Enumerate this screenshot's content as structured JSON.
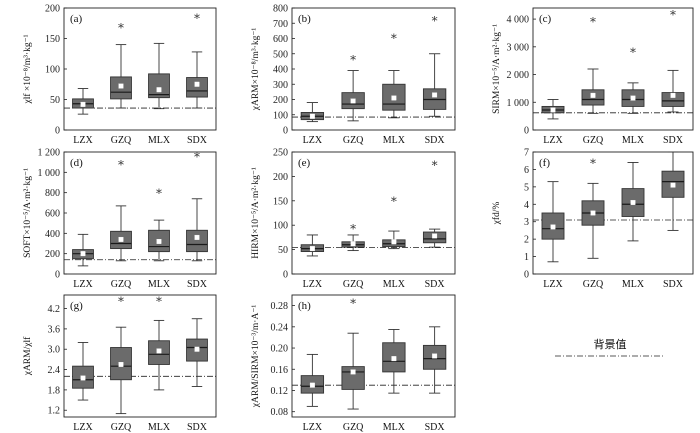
{
  "chart_data": [
    {
      "type": "boxplot",
      "panel_label": "(a)",
      "ylabel": "χlf ×10⁻⁸/m³·kg⁻¹",
      "ylim": [
        0,
        200
      ],
      "yticks": [
        "0",
        "50",
        "100",
        "150",
        "200"
      ],
      "ytick_values": [
        0,
        50,
        100,
        150,
        200
      ],
      "categories": [
        "LZX",
        "GZQ",
        "MLX",
        "SDX"
      ],
      "boxes": [
        {
          "whislo": 26,
          "q1": 36,
          "med": 43,
          "q3": 51,
          "whishi": 68,
          "mean": 42,
          "outliers": []
        },
        {
          "whislo": 36,
          "q1": 51,
          "med": 62,
          "q3": 87,
          "whishi": 140,
          "mean": 72,
          "outliers": [
            172
          ]
        },
        {
          "whislo": 35,
          "q1": 53,
          "med": 58,
          "q3": 92,
          "whishi": 142,
          "mean": 66,
          "outliers": []
        },
        {
          "whislo": 36,
          "q1": 54,
          "med": 64,
          "q3": 86,
          "whishi": 128,
          "mean": 75,
          "outliers": [
            188
          ]
        }
      ],
      "background": 36
    },
    {
      "type": "boxplot",
      "panel_label": "(b)",
      "ylabel": "χARM×10⁻⁸/m³·kg⁻¹",
      "ylim": [
        0,
        800
      ],
      "yticks": [
        "0",
        "100",
        "200",
        "300",
        "400",
        "500",
        "600",
        "700",
        "800"
      ],
      "ytick_values": [
        0,
        100,
        200,
        300,
        400,
        500,
        600,
        700,
        800
      ],
      "categories": [
        "LZX",
        "GZQ",
        "MLX",
        "SDX"
      ],
      "boxes": [
        {
          "whislo": 55,
          "q1": 68,
          "med": 90,
          "q3": 115,
          "whishi": 180,
          "mean": 90,
          "outliers": []
        },
        {
          "whislo": 60,
          "q1": 140,
          "med": 170,
          "q3": 245,
          "whishi": 390,
          "mean": 190,
          "outliers": [
            480
          ]
        },
        {
          "whislo": 80,
          "q1": 130,
          "med": 170,
          "q3": 300,
          "whishi": 390,
          "mean": 210,
          "outliers": [
            620
          ]
        },
        {
          "whislo": 90,
          "q1": 135,
          "med": 200,
          "q3": 270,
          "whishi": 500,
          "mean": 230,
          "outliers": [
            735
          ]
        }
      ],
      "background": 85
    },
    {
      "type": "boxplot",
      "panel_label": "(c)",
      "ylabel": "SIRM×10⁻⁵/A·m²·kg⁻¹",
      "ylim": [
        0,
        4400
      ],
      "yticks": [
        "0",
        "1 000",
        "2 000",
        "3 000",
        "4 000"
      ],
      "ytick_values": [
        0,
        1000,
        2000,
        3000,
        4000
      ],
      "categories": [
        "LZX",
        "GZQ",
        "MLX",
        "SDX"
      ],
      "boxes": [
        {
          "whislo": 400,
          "q1": 620,
          "med": 720,
          "q3": 850,
          "whishi": 1100,
          "mean": 720,
          "outliers": []
        },
        {
          "whislo": 600,
          "q1": 900,
          "med": 1100,
          "q3": 1450,
          "whishi": 2200,
          "mean": 1250,
          "outliers": [
            4000
          ]
        },
        {
          "whislo": 600,
          "q1": 850,
          "med": 1100,
          "q3": 1450,
          "whishi": 1700,
          "mean": 1150,
          "outliers": [
            2900
          ]
        },
        {
          "whislo": 650,
          "q1": 850,
          "med": 1050,
          "q3": 1350,
          "whishi": 2150,
          "mean": 1250,
          "outliers": [
            4250
          ]
        }
      ],
      "background": 620
    },
    {
      "type": "boxplot",
      "panel_label": "(d)",
      "ylabel": "SOFT×10⁻⁵/A·m²·kg⁻¹",
      "ylim": [
        0,
        1200
      ],
      "yticks": [
        "0",
        "200",
        "400",
        "600",
        "800",
        "1 000",
        "1 200"
      ],
      "ytick_values": [
        0,
        200,
        400,
        600,
        800,
        1000,
        1200
      ],
      "categories": [
        "LZX",
        "GZQ",
        "MLX",
        "SDX"
      ],
      "boxes": [
        {
          "whislo": 80,
          "q1": 150,
          "med": 200,
          "q3": 240,
          "whishi": 390,
          "mean": 200,
          "outliers": []
        },
        {
          "whislo": 130,
          "q1": 250,
          "med": 300,
          "q3": 420,
          "whishi": 670,
          "mean": 340,
          "outliers": [
            1100
          ]
        },
        {
          "whislo": 130,
          "q1": 220,
          "med": 270,
          "q3": 430,
          "whishi": 530,
          "mean": 320,
          "outliers": [
            820
          ]
        },
        {
          "whislo": 130,
          "q1": 220,
          "med": 290,
          "q3": 430,
          "whishi": 740,
          "mean": 360,
          "outliers": [
            1180
          ]
        }
      ],
      "background": 140
    },
    {
      "type": "boxplot",
      "panel_label": "(e)",
      "ylabel": "HIRM×10⁻⁵/A·m²·kg⁻¹",
      "ylim": [
        0,
        250
      ],
      "yticks": [
        "0",
        "50",
        "100",
        "150",
        "200",
        "250"
      ],
      "ytick_values": [
        0,
        50,
        100,
        150,
        200,
        250
      ],
      "categories": [
        "LZX",
        "GZQ",
        "MLX",
        "SDX"
      ],
      "boxes": [
        {
          "whislo": 37,
          "q1": 46,
          "med": 52,
          "q3": 60,
          "whishi": 80,
          "mean": 52,
          "outliers": []
        },
        {
          "whislo": 48,
          "q1": 55,
          "med": 60,
          "q3": 66,
          "whishi": 80,
          "mean": 62,
          "outliers": [
            98
          ]
        },
        {
          "whislo": 52,
          "q1": 56,
          "med": 62,
          "q3": 70,
          "whishi": 88,
          "mean": 66,
          "outliers": [
            155
          ]
        },
        {
          "whislo": 55,
          "q1": 64,
          "med": 72,
          "q3": 86,
          "whishi": 92,
          "mean": 78,
          "outliers": [
            228
          ]
        }
      ],
      "background": 54
    },
    {
      "type": "boxplot",
      "panel_label": "(f)",
      "ylabel": "χfd/%",
      "ylim": [
        0,
        7
      ],
      "yticks": [
        "0",
        "1",
        "2",
        "3",
        "4",
        "5",
        "6",
        "7"
      ],
      "ytick_values": [
        0,
        1,
        2,
        3,
        4,
        5,
        6,
        7
      ],
      "categories": [
        "LZX",
        "GZQ",
        "MLX",
        "SDX"
      ],
      "boxes": [
        {
          "whislo": 0.7,
          "q1": 2.0,
          "med": 2.6,
          "q3": 3.5,
          "whishi": 5.3,
          "mean": 2.7,
          "outliers": []
        },
        {
          "whislo": 0.9,
          "q1": 2.8,
          "med": 3.5,
          "q3": 4.2,
          "whishi": 5.2,
          "mean": 3.5,
          "outliers": [
            6.5
          ]
        },
        {
          "whislo": 1.9,
          "q1": 3.3,
          "med": 4.0,
          "q3": 4.9,
          "whishi": 6.4,
          "mean": 4.1,
          "outliers": []
        },
        {
          "whislo": 2.5,
          "q1": 4.4,
          "med": 5.3,
          "q3": 5.9,
          "whishi": 7.0,
          "mean": 5.1,
          "outliers": []
        }
      ],
      "background": 3.1
    },
    {
      "type": "boxplot",
      "panel_label": "(g)",
      "ylabel": "χARM/χlf",
      "ylim": [
        1.0,
        4.6
      ],
      "yticks": [
        "1.2",
        "1.8",
        "2.4",
        "3.0",
        "3.6",
        "4.2"
      ],
      "ytick_values": [
        1.2,
        1.8,
        2.4,
        3.0,
        3.6,
        4.2
      ],
      "categories": [
        "LZX",
        "GZQ",
        "MLX",
        "SDX"
      ],
      "boxes": [
        {
          "whislo": 1.5,
          "q1": 1.85,
          "med": 2.1,
          "q3": 2.5,
          "whishi": 3.2,
          "mean": 2.15,
          "outliers": []
        },
        {
          "whislo": 1.1,
          "q1": 2.1,
          "med": 2.5,
          "q3": 3.05,
          "whishi": 3.65,
          "mean": 2.55,
          "outliers": [
            4.5
          ]
        },
        {
          "whislo": 1.8,
          "q1": 2.55,
          "med": 2.85,
          "q3": 3.25,
          "whishi": 3.85,
          "mean": 2.95,
          "outliers": [
            4.5
          ]
        },
        {
          "whislo": 1.9,
          "q1": 2.65,
          "med": 3.05,
          "q3": 3.3,
          "whishi": 3.9,
          "mean": 3.0,
          "outliers": []
        }
      ],
      "background": 2.2
    },
    {
      "type": "boxplot",
      "panel_label": "(h)",
      "ylabel": "χARM/SIRM×10⁻³/m·A⁻¹",
      "ylim": [
        0.07,
        0.3
      ],
      "yticks": [
        "0.08",
        "0.12",
        "0.16",
        "0.20",
        "0.24",
        "0.28"
      ],
      "ytick_values": [
        0.08,
        0.12,
        0.16,
        0.2,
        0.24,
        0.28
      ],
      "categories": [
        "LZX",
        "GZQ",
        "MLX",
        "SDX"
      ],
      "boxes": [
        {
          "whislo": 0.09,
          "q1": 0.115,
          "med": 0.128,
          "q3": 0.148,
          "whishi": 0.188,
          "mean": 0.13,
          "outliers": []
        },
        {
          "whislo": 0.085,
          "q1": 0.122,
          "med": 0.155,
          "q3": 0.165,
          "whishi": 0.228,
          "mean": 0.155,
          "outliers": [
            0.29
          ]
        },
        {
          "whislo": 0.115,
          "q1": 0.155,
          "med": 0.175,
          "q3": 0.21,
          "whishi": 0.235,
          "mean": 0.18,
          "outliers": []
        },
        {
          "whislo": 0.115,
          "q1": 0.16,
          "med": 0.18,
          "q3": 0.205,
          "whishi": 0.24,
          "mean": 0.185,
          "outliers": []
        }
      ],
      "background": 0.13
    }
  ],
  "legend": {
    "label": "背景值"
  },
  "colors": {
    "box_fill": "#6b6b6b",
    "box_stroke": "#333333",
    "mean_marker": "#ffffff",
    "line": "#222222"
  }
}
